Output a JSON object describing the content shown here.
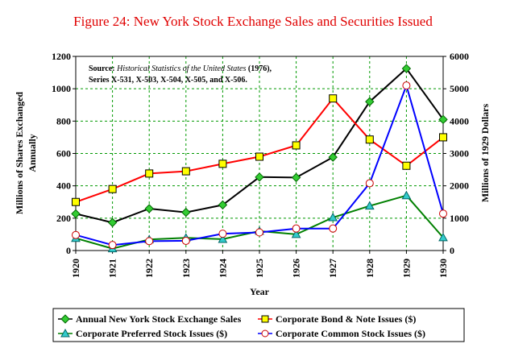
{
  "chart_data": {
    "type": "line",
    "title": "Figure 24:  New York Stock Exchange Sales and Securities Issued",
    "xlabel": "Year",
    "ylabel_left": [
      "Millions of Shares Exchanged",
      "Annually"
    ],
    "ylabel_right": "Millions of 1929 Dollars",
    "ylim_left": [
      0,
      1200
    ],
    "ylim_right": [
      0,
      6000
    ],
    "yticks_left": [
      "0",
      "200",
      "400",
      "600",
      "800",
      "1000",
      "1200"
    ],
    "yticks_right": [
      "0",
      "1000",
      "2000",
      "3000",
      "4000",
      "5000",
      "6000"
    ],
    "categories": [
      "1920",
      "1921",
      "1922",
      "1923",
      "1924",
      "1925",
      "1926",
      "1927",
      "1928",
      "1929",
      "1930"
    ],
    "grid": true,
    "source": {
      "prefix": "Source: ",
      "italic": "Historical Statistics of the United States",
      "suffix": " (1976),",
      "line2": "Series X-531, X-503, X-504, X-505, and X-506."
    },
    "series": [
      {
        "name": "Annual New York Stock Exchange Sales",
        "axis": "left",
        "color": "#000000",
        "marker": "diamond",
        "marker_color": "#33cc33",
        "values": [
          227,
          173,
          259,
          236,
          282,
          454,
          451,
          577,
          920,
          1125,
          810
        ]
      },
      {
        "name": "Corporate Bond & Note Issues ($)",
        "axis": "right",
        "color": "#ff0000",
        "marker": "square",
        "marker_color": "#ffff00",
        "values": [
          1500,
          1900,
          2380,
          2450,
          2680,
          2900,
          3250,
          4700,
          3430,
          2620,
          3500
        ]
      },
      {
        "name": "Corporate Preferred Stock Issues ($)",
        "axis": "right",
        "color": "#008000",
        "marker": "triangle",
        "marker_color": "#33cccc",
        "values": [
          380,
          60,
          340,
          390,
          350,
          600,
          500,
          1020,
          1380,
          1700,
          400
        ]
      },
      {
        "name": "Corporate Common Stock Issues ($)",
        "axis": "right",
        "color": "#0000ff",
        "marker": "circle",
        "marker_color": "#ffffff",
        "marker_stroke": "#cc0000",
        "values": [
          480,
          170,
          290,
          300,
          520,
          560,
          680,
          680,
          2080,
          5100,
          1140
        ]
      }
    ]
  }
}
